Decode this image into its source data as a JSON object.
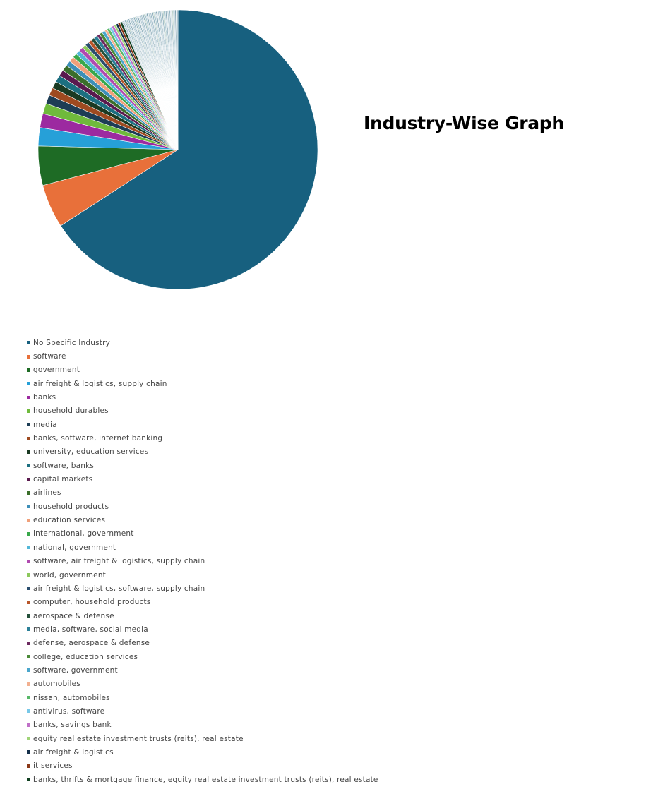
{
  "title": "Industry-Wise Graph",
  "chart_data": {
    "type": "pie",
    "title": "Industry-Wise Graph",
    "legend_position": "bottom",
    "labels": [
      "No Specific Industry",
      "software",
      "government",
      "air freight & logistics, supply chain",
      "banks",
      "household durables",
      "media",
      "banks, software, internet banking",
      "university, education services",
      "software, banks",
      "capital markets",
      "airlines",
      "household products",
      "education services",
      "international, government",
      "national, government",
      "software, air freight & logistics, supply chain",
      "world, government",
      "air freight & logistics, software, supply chain",
      "computer, household products",
      "aerospace & defense",
      "media, software, social media",
      "defense, aerospace & defense",
      "college, education services",
      "software, government",
      "automobiles",
      "nissan, automobiles",
      "antivirus, software",
      "banks, savings bank",
      "equity real estate investment trusts (reits), real estate",
      "air freight & logistics",
      "it services",
      "banks, thrifts & mortgage finance, equity real estate investment trusts (reits), real estate"
    ],
    "values": [
      65.2,
      5.0,
      4.5,
      2.1,
      1.6,
      1.2,
      1.0,
      0.9,
      0.8,
      0.8,
      0.7,
      0.7,
      0.6,
      0.6,
      0.5,
      0.5,
      0.5,
      0.45,
      0.45,
      0.4,
      0.4,
      0.4,
      0.35,
      0.35,
      0.35,
      0.3,
      0.3,
      0.3,
      0.3,
      0.25,
      0.25,
      0.25,
      0.25
    ],
    "other_small_slices_total": 6.5,
    "colors": [
      "#17607f",
      "#e8703a",
      "#1e6b25",
      "#26a0d8",
      "#9c2aa0",
      "#6fba3c",
      "#1d3d55",
      "#9e4a20",
      "#1a3a22",
      "#1c6f80",
      "#5a1a4e",
      "#3a6e2a",
      "#3d8fb8",
      "#f0a07a",
      "#38a84a",
      "#52b7d8",
      "#b04ab0",
      "#8cc85c",
      "#2a4e6e",
      "#b8562a",
      "#24503a",
      "#2c8098",
      "#6c2a60",
      "#4a8a38",
      "#4aa6cc",
      "#f2b090",
      "#58b868",
      "#78c8e8",
      "#c070c8",
      "#a0d478",
      "#14304a",
      "#8a3818",
      "#104020"
    ]
  }
}
